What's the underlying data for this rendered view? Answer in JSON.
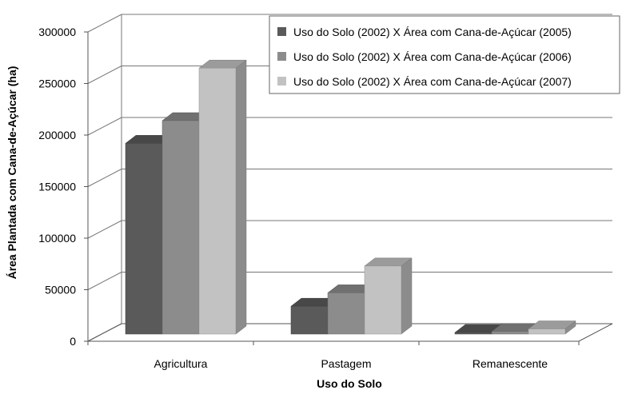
{
  "chart_data": {
    "type": "bar",
    "title": "",
    "xlabel": "Uso do Solo",
    "ylabel": "Área Plantada com Cana-de-Açúcar (ha)",
    "categories": [
      "Agricultura",
      "Pastagem",
      "Remanescente"
    ],
    "ylim": [
      0,
      300000
    ],
    "yticks": [
      "0",
      "50000",
      "100000",
      "150000",
      "200000",
      "250000",
      "300000"
    ],
    "grid": true,
    "legend_position": "top-right",
    "series": [
      {
        "name": "Uso do Solo (2002) X Área com Cana-de-Açúcar (2005)",
        "values": [
          185000,
          27000,
          1500
        ],
        "color": "#5a5a5a"
      },
      {
        "name": "Uso do Solo (2002) X Área com Cana-de-Açúcar (2006)",
        "values": [
          207000,
          40000,
          2500
        ],
        "color": "#8c8c8c"
      },
      {
        "name": "Uso do Solo (2002) X Área com Cana-de-Açúcar (2007)",
        "values": [
          258000,
          66000,
          5000
        ],
        "color": "#c2c2c2"
      }
    ]
  }
}
